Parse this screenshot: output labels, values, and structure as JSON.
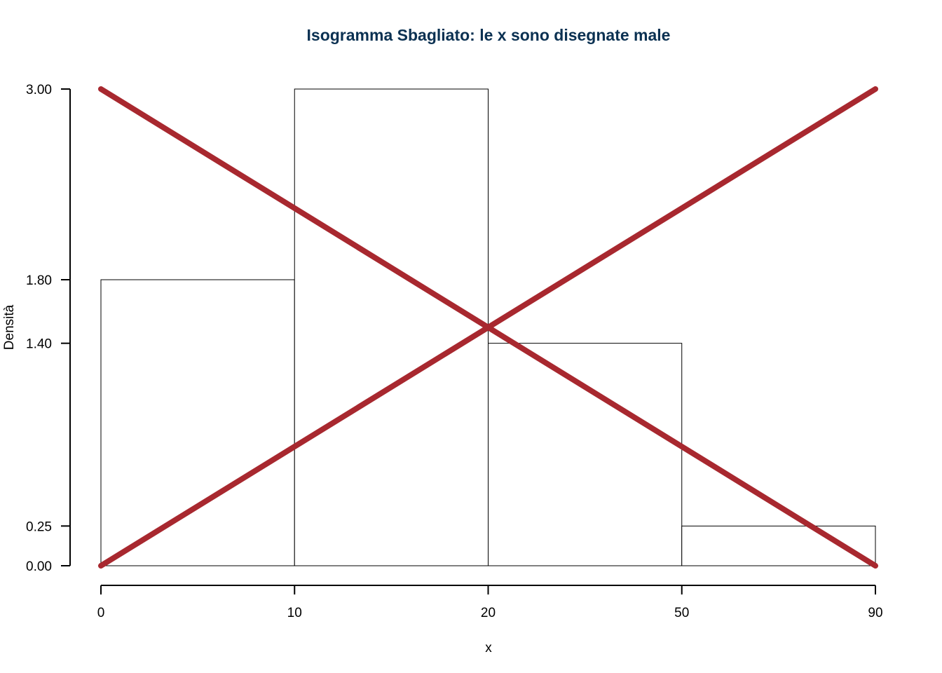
{
  "chart_data": {
    "type": "bar",
    "title": "Isogramma Sbagliato: le x sono disegnate male",
    "xlabel": "x",
    "ylabel": "Densità",
    "categories": [
      "0-10",
      "10-20",
      "20-50",
      "50-90"
    ],
    "bin_edges": [
      0,
      10,
      20,
      50,
      90
    ],
    "x_tick_labels": [
      "0",
      "10",
      "20",
      "50",
      "90"
    ],
    "values": [
      1.8,
      3.0,
      1.4,
      0.25
    ],
    "y_ticks": [
      0,
      0.25,
      1.4,
      1.8,
      3.0
    ],
    "y_tick_labels": [
      "0.00",
      "0.25",
      "1.40",
      "1.80",
      "3.00"
    ],
    "ylim": [
      0,
      3
    ],
    "grid": false,
    "annotations": [
      {
        "type": "cross-out-line",
        "from": [
          0,
          0
        ],
        "to": [
          90,
          3.0
        ]
      },
      {
        "type": "cross-out-line",
        "from": [
          0,
          3.0
        ],
        "to": [
          90,
          0
        ]
      }
    ],
    "colors": {
      "title": "#0b3152",
      "bar_fill": "#ffffff",
      "bar_stroke": "#000000",
      "cross_out": "#a8282f"
    }
  }
}
